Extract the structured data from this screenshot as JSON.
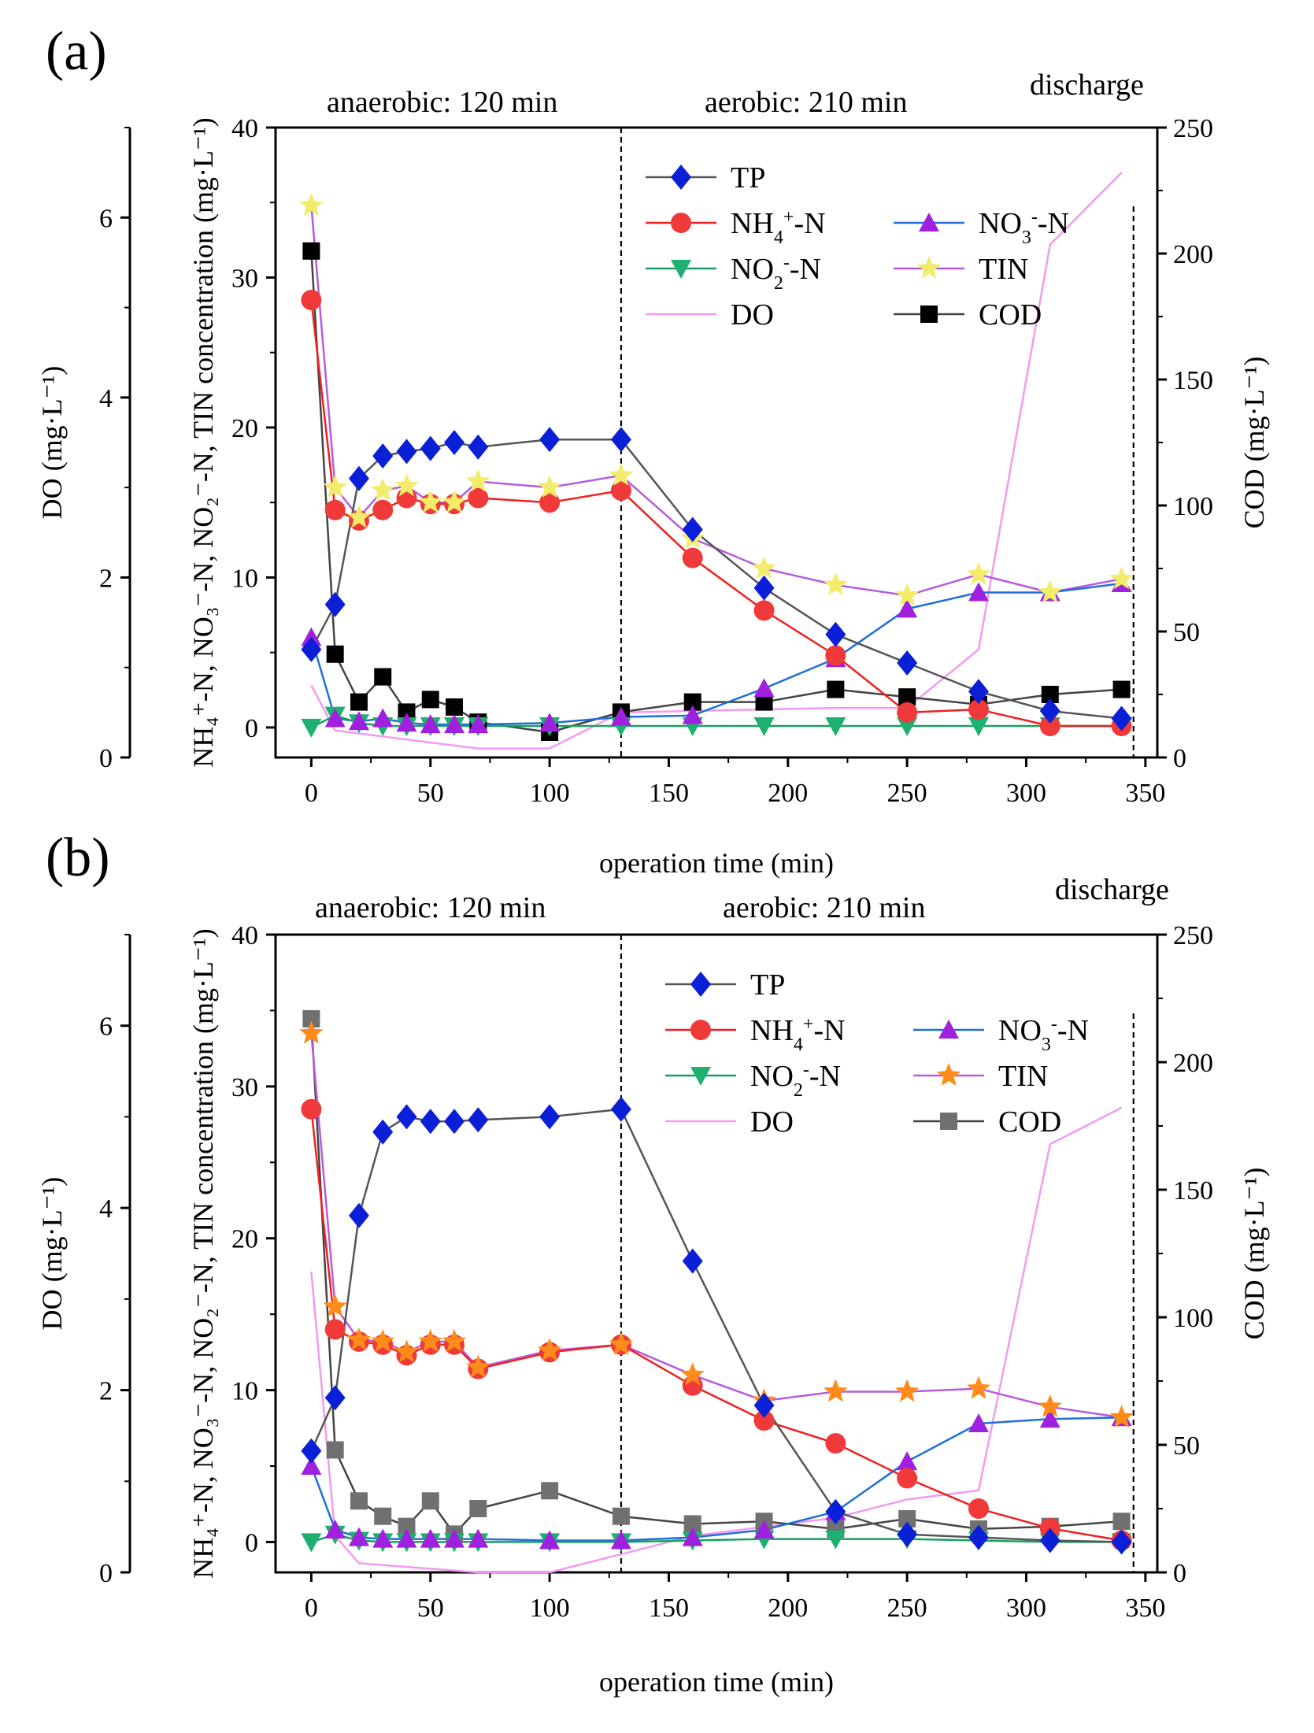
{
  "colors": {
    "TP": "#0a1fd6",
    "NH4": "#f03a3a",
    "NO3_marker": "#a020e0",
    "NO3_line": "#1f6fd6",
    "NO2": "#1eb070",
    "TIN_a": "#f2ec6a",
    "TIN_b": "#ff8c1a",
    "TIN_line": "#b65be0",
    "DO": "#f29af2",
    "COD_a": "#000000",
    "COD_b": "#707070",
    "TP_line": "#555555",
    "NH4_line": "#ee2020",
    "NO2_line": "#1aa060"
  },
  "chart_data": [
    {
      "panel": "(a)",
      "type": "line",
      "xlabel": "operation time (min)",
      "ylabel_left": "DO  (mg·L⁻¹)",
      "ylabel_mid": "NH₄⁺-N, NO₃⁻-N, NO₂⁻-N, TIN concentration (mg·L⁻¹)",
      "ylabel_right": "COD  (mg·L⁻¹)",
      "xlim": [
        -15,
        355
      ],
      "xticks": [
        "0",
        "50",
        "100",
        "150",
        "200",
        "250",
        "300",
        "350"
      ],
      "ylim_conc": [
        -2,
        40
      ],
      "yticks_conc": [
        "0",
        "10",
        "20",
        "30",
        "40"
      ],
      "ylim_do": [
        0,
        7
      ],
      "yticks_do": [
        "0",
        "2",
        "4",
        "6"
      ],
      "ylim_cod": [
        0,
        250
      ],
      "yticks_cod": [
        "0",
        "50",
        "100",
        "150",
        "200",
        "250"
      ],
      "phase_labels": {
        "anaerobic": "anaerobic: 120 min",
        "aerobic": "aerobic: 210 min",
        "discharge": "discharge"
      },
      "phase_lines_min": [
        130,
        345
      ],
      "legend": {
        "TP": "TP",
        "NH4": "NH4+-N",
        "NO3": "NO3--N",
        "NO2": "NO2--N",
        "TIN": "TIN",
        "DO": "DO",
        "COD": "COD"
      },
      "x": [
        0,
        10,
        20,
        30,
        40,
        50,
        60,
        70,
        100,
        130,
        160,
        190,
        220,
        250,
        280,
        310,
        340
      ],
      "series": [
        {
          "name": "TP",
          "axis": "conc",
          "values": [
            5.2,
            8.2,
            16.6,
            18.1,
            18.4,
            18.6,
            19.0,
            18.7,
            19.2,
            19.2,
            13.2,
            9.3,
            6.2,
            4.3,
            2.4,
            1.1,
            0.6
          ]
        },
        {
          "name": "NH4+-N",
          "axis": "conc",
          "values": [
            28.5,
            14.5,
            13.8,
            14.5,
            15.3,
            14.9,
            14.9,
            15.3,
            15.0,
            15.8,
            11.3,
            7.8,
            4.8,
            1.0,
            1.2,
            0.1,
            0.1
          ]
        },
        {
          "name": "NO3--N",
          "axis": "conc",
          "values": [
            6.0,
            0.6,
            0.4,
            0.6,
            0.3,
            0.2,
            0.2,
            0.2,
            0.3,
            0.7,
            0.8,
            2.6,
            4.6,
            7.9,
            9.0,
            9.0,
            9.6
          ]
        },
        {
          "name": "NO2--N",
          "axis": "conc",
          "values": [
            0.0,
            0.8,
            0.3,
            0.1,
            0.1,
            0.1,
            0.1,
            0.1,
            0.1,
            0.1,
            0.1,
            0.1,
            0.1,
            0.1,
            0.1,
            0.1,
            0.1
          ]
        },
        {
          "name": "TIN",
          "axis": "conc",
          "values": [
            34.8,
            16.0,
            14.0,
            15.8,
            16.1,
            15.0,
            15.0,
            16.4,
            16.0,
            16.8,
            12.6,
            10.6,
            9.5,
            8.8,
            10.2,
            9.0,
            9.9
          ]
        },
        {
          "name": "COD",
          "axis": "cod",
          "values": [
            201,
            41,
            22,
            32,
            18,
            23,
            20,
            14,
            10,
            18,
            22,
            22,
            27,
            24,
            21,
            25,
            27
          ]
        },
        {
          "name": "DO",
          "axis": "do",
          "x": [
            0,
            10,
            70,
            100,
            130,
            220,
            250,
            280,
            310,
            340
          ],
          "values": [
            0.8,
            0.3,
            0.1,
            0.1,
            0.5,
            0.55,
            0.55,
            1.2,
            5.7,
            6.5
          ]
        }
      ]
    },
    {
      "panel": "(b)",
      "type": "line",
      "xlabel": "operation time (min)",
      "ylabel_left": "DO (mg·L⁻¹)",
      "ylabel_mid": "NH₄⁺-N, NO₃⁻-N, NO₂⁻-N, TIN concentration (mg·L⁻¹)",
      "ylabel_right": "COD  (mg·L⁻¹)",
      "xlim": [
        -15,
        355
      ],
      "xticks": [
        "0",
        "50",
        "100",
        "150",
        "200",
        "250",
        "300",
        "350"
      ],
      "ylim_conc": [
        -2,
        40
      ],
      "yticks_conc": [
        "0",
        "10",
        "20",
        "30",
        "40"
      ],
      "ylim_do": [
        0,
        7
      ],
      "yticks_do": [
        "0",
        "2",
        "4",
        "6"
      ],
      "ylim_cod": [
        0,
        250
      ],
      "yticks_cod": [
        "0",
        "50",
        "100",
        "150",
        "200",
        "250"
      ],
      "phase_labels": {
        "anaerobic": "anaerobic: 120 min",
        "aerobic": "aerobic: 210 min",
        "discharge": "discharge"
      },
      "phase_lines_min": [
        130,
        345
      ],
      "legend": {
        "TP": "TP",
        "NH4": "NH4+-N",
        "NO3": "NO3--N",
        "NO2": "NO2--N",
        "TIN": "TIN",
        "DO": "DO",
        "COD": "COD"
      },
      "x": [
        0,
        10,
        20,
        30,
        40,
        50,
        60,
        70,
        100,
        130,
        160,
        190,
        220,
        250,
        280,
        310,
        340
      ],
      "series": [
        {
          "name": "TP",
          "axis": "conc",
          "values": [
            6.0,
            9.5,
            21.5,
            27.0,
            28.0,
            27.7,
            27.7,
            27.8,
            28.0,
            28.5,
            18.5,
            9.0,
            2.0,
            0.5,
            0.3,
            0.1,
            0.0
          ]
        },
        {
          "name": "NH4+-N",
          "axis": "conc",
          "values": [
            28.5,
            14.0,
            13.2,
            13.0,
            12.3,
            13.0,
            13.0,
            11.4,
            12.5,
            13.0,
            10.3,
            8.0,
            6.5,
            4.2,
            2.2,
            0.9,
            0.1
          ]
        },
        {
          "name": "NO3--N",
          "axis": "conc",
          "values": [
            5.0,
            0.8,
            0.3,
            0.2,
            0.2,
            0.2,
            0.2,
            0.2,
            0.1,
            0.1,
            0.3,
            0.8,
            2.0,
            5.3,
            7.8,
            8.1,
            8.2
          ]
        },
        {
          "name": "NO2--N",
          "axis": "conc",
          "values": [
            0.0,
            0.5,
            0.1,
            0.0,
            0.0,
            0.0,
            0.0,
            0.0,
            0.0,
            0.0,
            0.1,
            0.2,
            0.2,
            0.2,
            0.1,
            0.0,
            0.0
          ]
        },
        {
          "name": "TIN",
          "axis": "conc",
          "values": [
            33.5,
            15.5,
            13.3,
            13.2,
            12.5,
            13.2,
            13.2,
            11.5,
            12.6,
            13.0,
            11.0,
            9.3,
            9.9,
            9.9,
            10.1,
            8.9,
            8.2
          ]
        },
        {
          "name": "COD",
          "axis": "cod",
          "values": [
            217,
            48,
            28,
            22,
            18,
            28,
            15,
            25,
            32,
            22,
            19,
            20,
            17,
            21,
            17,
            18,
            20
          ]
        },
        {
          "name": "DO",
          "axis": "do",
          "x": [
            0,
            10,
            20,
            70,
            100,
            130,
            160,
            220,
            250,
            280,
            310,
            340
          ],
          "values": [
            3.3,
            0.4,
            0.1,
            0.0,
            0.0,
            0.2,
            0.4,
            0.6,
            0.8,
            0.9,
            4.7,
            5.1
          ]
        }
      ]
    }
  ]
}
